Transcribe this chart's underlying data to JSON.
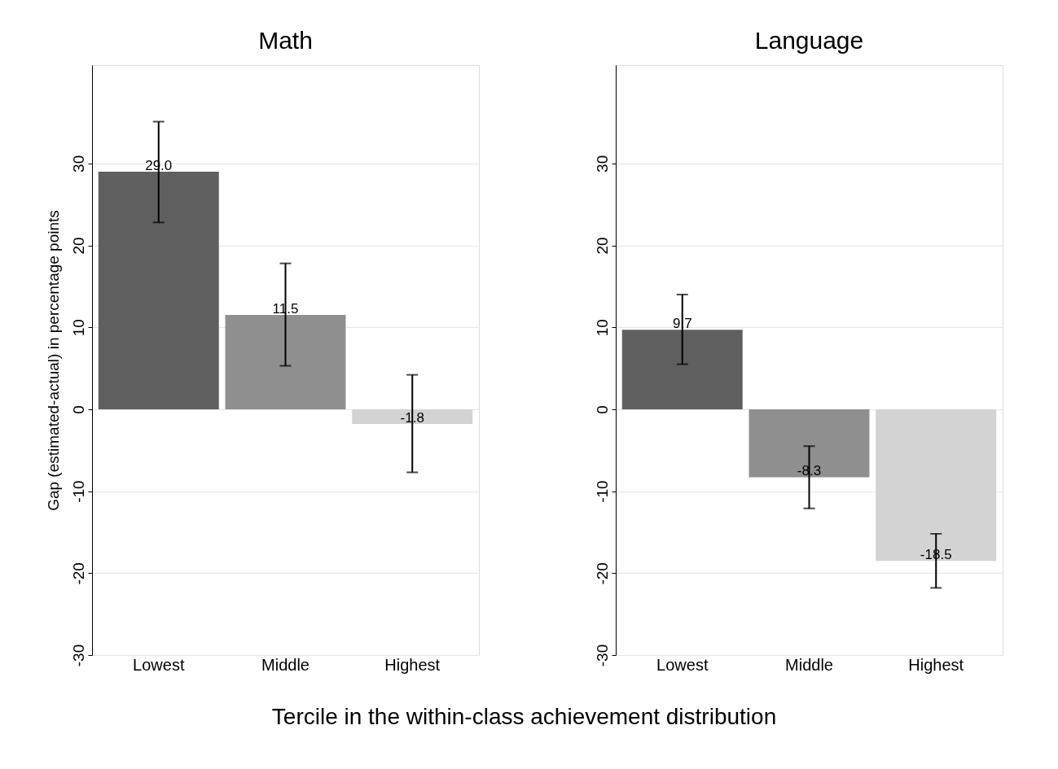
{
  "chart_data": [
    {
      "type": "bar",
      "title": "Math",
      "ylabel": "Gap (estimated-actual) in percentage points",
      "xlabel": "Tercile in the within-class achievement distribution",
      "categories": [
        "Lowest",
        "Middle",
        "Highest"
      ],
      "values": [
        29.0,
        11.5,
        -1.8
      ],
      "colors": [
        "#5f5f5f",
        "#8f8f8f",
        "#d3d3d3"
      ],
      "errors": [
        [
          22.8,
          35.1
        ],
        [
          5.3,
          17.8
        ],
        [
          -7.7,
          4.2
        ]
      ],
      "value_labels": [
        "29.0",
        "11.5",
        "-1.8"
      ],
      "ylim": [
        -30,
        42
      ],
      "yticks": [
        -30,
        -20,
        -10,
        0,
        10,
        20,
        30
      ],
      "grid": "y"
    },
    {
      "type": "bar",
      "title": "Language",
      "categories": [
        "Lowest",
        "Middle",
        "Highest"
      ],
      "values": [
        9.7,
        -8.3,
        -18.5
      ],
      "colors": [
        "#5f5f5f",
        "#8f8f8f",
        "#d3d3d3"
      ],
      "errors": [
        [
          5.5,
          14.0
        ],
        [
          -12.1,
          -4.5
        ],
        [
          -21.8,
          -15.2
        ]
      ],
      "value_labels": [
        "9.7",
        "-8.3",
        "-18.5"
      ],
      "ylim": [
        -30,
        42
      ],
      "yticks": [
        -30,
        -20,
        -10,
        0,
        10,
        20,
        30
      ],
      "grid": "y"
    }
  ]
}
